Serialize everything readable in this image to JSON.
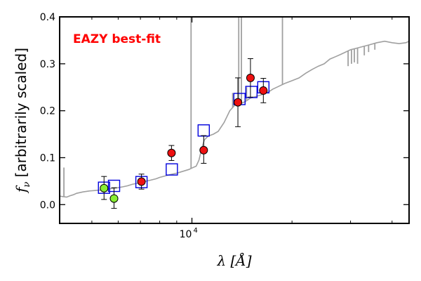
{
  "chart_data": {
    "type": "scatter",
    "title": "",
    "xlabel": "λ [Å]",
    "ylabel": "[arbitrarily scaled]",
    "ylabel_symbol": "f",
    "ylabel_subscript": "ν",
    "xscale": "log",
    "xlim": [
      4000,
      45000
    ],
    "ylim": [
      -0.04,
      0.4
    ],
    "yticks": [
      0.0,
      0.1,
      0.2,
      0.3,
      0.4
    ],
    "ytick_labels": [
      "0.0",
      "0.1",
      "0.2",
      "0.3",
      "0.4"
    ],
    "xtick_major": [
      10000
    ],
    "xtick_label_base": "10",
    "xtick_label_exp": "4",
    "xtick_minor": [
      5000,
      6000,
      7000,
      8000,
      9000,
      20000,
      30000,
      40000
    ],
    "grid": false,
    "annotation": {
      "text": "EAZY best-fit",
      "color": "#ff0000",
      "position": "top-left"
    },
    "colors": {
      "spectrum": "#a0a0a0",
      "model_box": "#0000dd",
      "detection": "#ee1111",
      "low_sn": "#88ee33",
      "errorbar": "#000000"
    },
    "series": [
      {
        "kind": "line",
        "points": [
          [
            4000,
            0.018
          ],
          [
            4100,
            0.017
          ],
          [
            4200,
            0.016
          ],
          [
            4300,
            0.019
          ],
          [
            4400,
            0.021
          ],
          [
            4500,
            0.024
          ],
          [
            4700,
            0.027
          ],
          [
            4900,
            0.029
          ],
          [
            5100,
            0.03
          ],
          [
            5300,
            0.031
          ],
          [
            5500,
            0.033
          ],
          [
            5700,
            0.034
          ],
          [
            5800,
            0.035
          ],
          [
            6000,
            0.036
          ],
          [
            6200,
            0.038
          ],
          [
            6400,
            0.04
          ],
          [
            6600,
            0.043
          ],
          [
            6900,
            0.046
          ],
          [
            7200,
            0.049
          ],
          [
            7500,
            0.052
          ],
          [
            7800,
            0.055
          ],
          [
            8000,
            0.058
          ],
          [
            8300,
            0.061
          ],
          [
            8600,
            0.064
          ],
          [
            9000,
            0.067
          ],
          [
            9400,
            0.071
          ],
          [
            9800,
            0.075
          ],
          [
            10000,
            0.078
          ],
          [
            10300,
            0.082
          ],
          [
            10500,
            0.095
          ],
          [
            10700,
            0.12
          ],
          [
            10900,
            0.138
          ],
          [
            11200,
            0.146
          ],
          [
            11600,
            0.15
          ],
          [
            12000,
            0.156
          ],
          [
            12500,
            0.175
          ],
          [
            13000,
            0.2
          ],
          [
            13500,
            0.213
          ],
          [
            14000,
            0.215
          ],
          [
            14500,
            0.22
          ],
          [
            15000,
            0.227
          ],
          [
            15500,
            0.23
          ],
          [
            16000,
            0.233
          ],
          [
            16500,
            0.236
          ],
          [
            17000,
            0.24
          ],
          [
            17500,
            0.246
          ],
          [
            18000,
            0.25
          ],
          [
            19000,
            0.258
          ],
          [
            20000,
            0.264
          ],
          [
            21000,
            0.27
          ],
          [
            22000,
            0.28
          ],
          [
            23000,
            0.288
          ],
          [
            24000,
            0.295
          ],
          [
            25000,
            0.3
          ],
          [
            26000,
            0.31
          ],
          [
            27000,
            0.315
          ],
          [
            28000,
            0.32
          ],
          [
            29000,
            0.325
          ],
          [
            30000,
            0.33
          ],
          [
            32000,
            0.335
          ],
          [
            34000,
            0.34
          ],
          [
            36000,
            0.345
          ],
          [
            38000,
            0.348
          ],
          [
            40000,
            0.345
          ],
          [
            42000,
            0.343
          ],
          [
            44000,
            0.345
          ],
          [
            45000,
            0.348
          ]
        ],
        "spikes": [
          {
            "x": 4120,
            "base": 0.017,
            "top": 0.079
          },
          {
            "x": 9940,
            "base": 0.076,
            "top": 0.4
          },
          {
            "x": 13260,
            "base": 0.207,
            "top": 0.238
          },
          {
            "x": 13830,
            "base": 0.214,
            "top": 0.4
          },
          {
            "x": 14090,
            "base": 0.216,
            "top": 0.4
          },
          {
            "x": 14600,
            "base": 0.221,
            "top": 0.25
          },
          {
            "x": 18720,
            "base": 0.255,
            "top": 0.4
          },
          {
            "x": 29500,
            "base": 0.328,
            "top": 0.295
          },
          {
            "x": 30200,
            "base": 0.331,
            "top": 0.3
          },
          {
            "x": 30800,
            "base": 0.332,
            "top": 0.303
          },
          {
            "x": 31500,
            "base": 0.334,
            "top": 0.3
          },
          {
            "x": 33000,
            "base": 0.338,
            "top": 0.318
          },
          {
            "x": 34000,
            "base": 0.34,
            "top": 0.325
          },
          {
            "x": 35500,
            "base": 0.343,
            "top": 0.33
          }
        ]
      },
      {
        "kind": "model_squares",
        "points": [
          [
            5440,
            0.036
          ],
          [
            5830,
            0.04
          ],
          [
            7050,
            0.048
          ],
          [
            8700,
            0.075
          ],
          [
            10850,
            0.158
          ],
          [
            13900,
            0.225
          ],
          [
            15100,
            0.24
          ],
          [
            16400,
            0.25
          ]
        ]
      },
      {
        "kind": "observed",
        "points": [
          {
            "x": 5440,
            "y": 0.035,
            "lo": 0.011,
            "hi": 0.06,
            "flag": "low_sn"
          },
          {
            "x": 5830,
            "y": 0.013,
            "lo": -0.008,
            "hi": 0.036,
            "flag": "low_sn"
          },
          {
            "x": 7050,
            "y": 0.049,
            "lo": 0.033,
            "hi": 0.065,
            "flag": "detection"
          },
          {
            "x": 8680,
            "y": 0.11,
            "lo": 0.094,
            "hi": 0.126,
            "flag": "detection"
          },
          {
            "x": 10850,
            "y": 0.116,
            "lo": 0.088,
            "hi": 0.147,
            "flag": "detection"
          },
          {
            "x": 13750,
            "y": 0.218,
            "lo": 0.166,
            "hi": 0.27,
            "flag": "detection"
          },
          {
            "x": 15000,
            "y": 0.27,
            "lo": 0.229,
            "hi": 0.311,
            "flag": "detection"
          },
          {
            "x": 16400,
            "y": 0.243,
            "lo": 0.217,
            "hi": 0.269,
            "flag": "detection"
          }
        ]
      }
    ]
  }
}
